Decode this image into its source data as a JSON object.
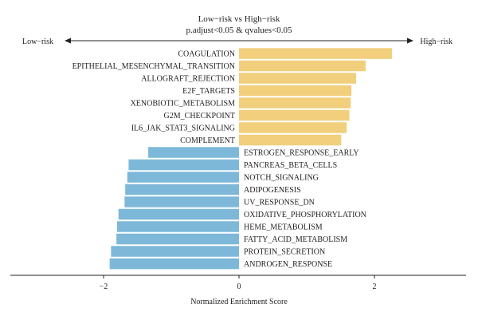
{
  "chart_data": {
    "type": "bar",
    "orientation": "horizontal",
    "title": "Low−risk vs High−risk",
    "subtitle": "p.adjust<0.05 & qvalues<0.05",
    "xlabel": "Normalized Enrichment Score",
    "ylabel": "",
    "xlim": [
      -3.5,
      3.2
    ],
    "xticks": [
      -2,
      0,
      2
    ],
    "xtick_labels": [
      "−2",
      "0",
      "2"
    ],
    "grid": false,
    "direction_labels": {
      "left": "Low−risk",
      "right": "High−risk"
    },
    "colors": {
      "positive": "#f1cf7c",
      "negative": "#7db8d9"
    },
    "categories": [
      "COAGULATION",
      "EPITHELIAL_MESENCHYMAL_TRANSITION",
      "ALLOGRAFT_REJECTION",
      "E2F_TARGETS",
      "XENOBIOTIC_METABOLISM",
      "G2M_CHECKPOINT",
      "IL6_JAK_STAT3_SIGNALING",
      "COMPLEMENT",
      "ESTROGEN_RESPONSE_EARLY",
      "PANCREAS_BETA_CELLS",
      "NOTCH_SIGNALING",
      "ADIPOGENESIS",
      "UV_RESPONSE_DN",
      "OXIDATIVE_PHOSPHORYLATION",
      "HEME_METABOLISM",
      "FATTY_ACID_METABOLISM",
      "PROTEIN_SECRETION",
      "ANDROGEN_RESPONSE"
    ],
    "values": [
      2.26,
      1.87,
      1.73,
      1.66,
      1.65,
      1.63,
      1.59,
      1.51,
      -1.34,
      -1.63,
      -1.65,
      -1.68,
      -1.69,
      -1.78,
      -1.8,
      -1.81,
      -1.89,
      -1.91
    ]
  }
}
